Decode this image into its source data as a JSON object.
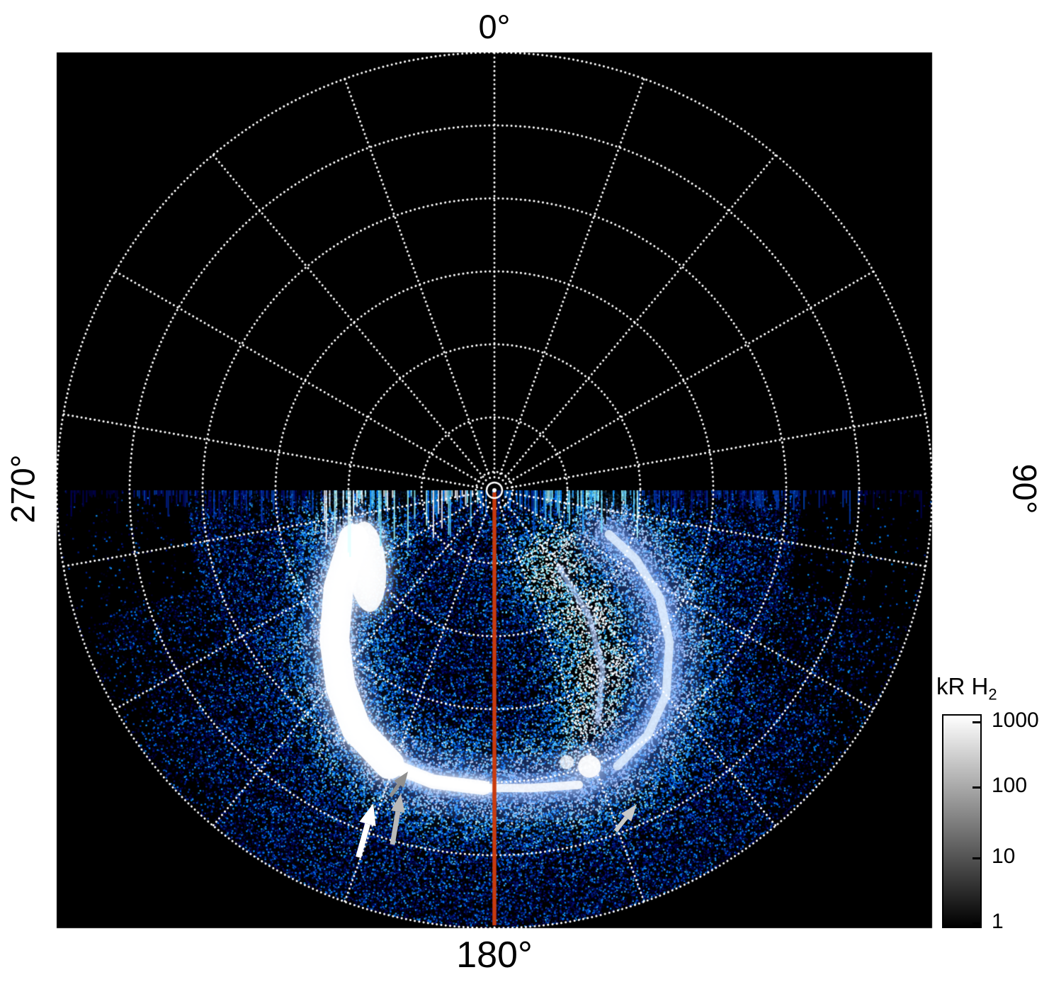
{
  "figure": {
    "background": "#ffffff",
    "plot_background": "#000000",
    "grid_color": "#ffffff",
    "meridian_color": "#c83a0e",
    "labels": {
      "top": "0°",
      "right": "90°",
      "bottom": "180°",
      "left": "270°"
    },
    "colorbar": {
      "title_main": "kR H",
      "title_sub": "2",
      "tick_labels": [
        "1000",
        "100",
        "10",
        "1"
      ],
      "gradient": [
        "#ffffff",
        "#aaaaaa",
        "#555555",
        "#000000"
      ]
    },
    "annotations": {
      "arrows": [
        {
          "name": "white-arrow",
          "color": "#ffffff",
          "tail": [
            506,
            1210
          ],
          "tip": [
            527,
            1134
          ],
          "shaft_w": 8,
          "head_l": 30,
          "head_w": 24
        },
        {
          "name": "gray-arrow",
          "color": "#b9b9b9",
          "tail": [
            554,
            1192
          ],
          "tip": [
            566,
            1120
          ],
          "shaft_w": 7,
          "head_l": 26,
          "head_w": 20
        },
        {
          "name": "dark-gray-arrowhead",
          "color": "#8f8f8f",
          "tail": [
            551,
            1124
          ],
          "tip": [
            576,
            1089
          ],
          "shaft_w": 5,
          "head_l": 22,
          "head_w": 17
        },
        {
          "name": "light-gray-arrowhead",
          "color": "#c9c9c9",
          "tail": [
            869,
            1173
          ],
          "tip": [
            899,
            1135
          ],
          "shaft_w": 6,
          "head_l": 24,
          "head_w": 18
        }
      ]
    }
  },
  "chart_data": {
    "type": "heatmap",
    "projection": "polar",
    "title": "",
    "description": "Polar projection map of auroral H2 emission (brightness in kR) on a black sky. Dotted white polar grid with azimuth labels 0 (top), 90 (right), 180 (bottom), 270 (left). Emission fills the 90-270 (lower) half as speckled blue noise with a bright white auroral oval arc; a solid red-orange line marks the 180 meridian from the pole to the outer edge. Grayscale logarithmic colorbar from 1 to 1000 kR. Gray and white arrows mark discrete features near the equatorward edge of the oval.",
    "azimuth_labels_deg": [
      0,
      90,
      180,
      270
    ],
    "grid": {
      "radial_rings": 6,
      "spoke_step_deg": 20,
      "style": "dotted"
    },
    "meridian_line_deg": 180,
    "emission_sector": "90 deg through 180 deg to 270 deg (lower half)",
    "colorbar": {
      "label": "kR H2",
      "min": 1,
      "max": 1000,
      "scale": "log",
      "colormap": "black-blue-white"
    },
    "auroral_oval_points": [
      [
        251,
        0.34
      ],
      [
        238,
        0.42
      ],
      [
        227,
        0.5
      ],
      [
        218,
        0.57
      ],
      [
        210,
        0.63
      ],
      [
        201,
        0.67
      ],
      [
        192,
        0.68
      ],
      [
        182,
        0.68
      ],
      [
        173,
        0.685
      ],
      [
        164,
        0.7
      ]
    ],
    "right_arc_points": [
      [
        156,
        0.69
      ],
      [
        148,
        0.66
      ],
      [
        140,
        0.61
      ],
      [
        131,
        0.53
      ],
      [
        123,
        0.45
      ],
      [
        116,
        0.36
      ],
      [
        111,
        0.28
      ]
    ],
    "inner_filament_points": [
      [
        140,
        0.23
      ],
      [
        143,
        0.36
      ],
      [
        149,
        0.48
      ],
      [
        156,
        0.58
      ]
    ],
    "bright_spot": {
      "az": 161,
      "r": 0.667
    }
  }
}
